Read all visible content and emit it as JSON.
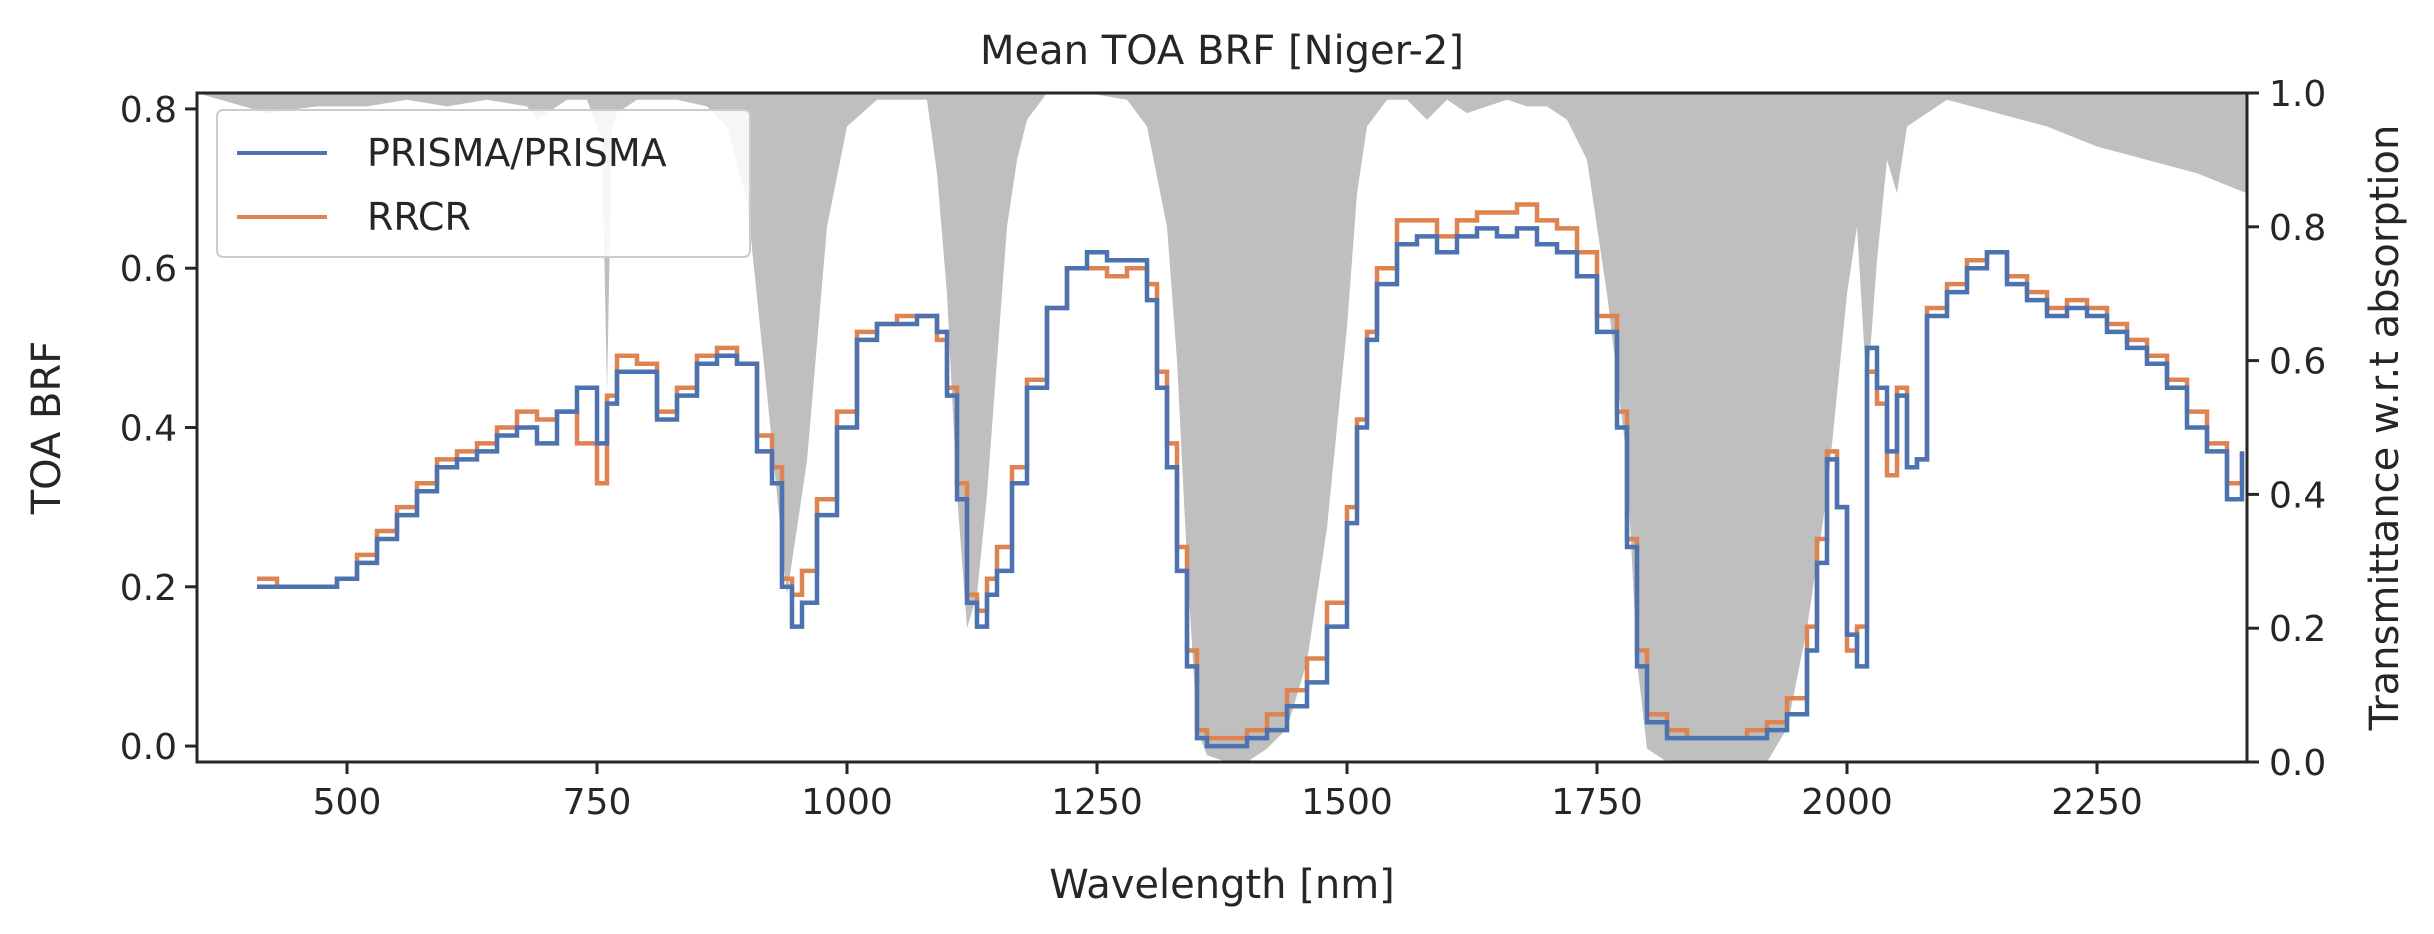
{
  "chart_data": {
    "type": "line",
    "title": "Mean TOA BRF [Niger-2]",
    "xlabel": "Wavelength [nm]",
    "ylabel": "TOA BRF",
    "ylabel_right": "Transmittance w.r.t absorption",
    "xlim": [
      350,
      2400
    ],
    "ylim": [
      -0.02,
      0.82
    ],
    "ylim_right": [
      0.0,
      1.0
    ],
    "xticks": [
      500,
      750,
      1000,
      1250,
      1500,
      1750,
      2000,
      2250
    ],
    "xtick_labels": [
      "500",
      "750",
      "1000",
      "1250",
      "1500",
      "1750",
      "2000",
      "2250"
    ],
    "yticks": [
      0.0,
      0.2,
      0.4,
      0.6,
      0.8
    ],
    "ytick_labels": [
      "0.0",
      "0.2",
      "0.4",
      "0.6",
      "0.8"
    ],
    "yticks_right": [
      0.0,
      0.2,
      0.4,
      0.6,
      0.8,
      1.0
    ],
    "ytick_labels_right": [
      "0.0",
      "0.2",
      "0.4",
      "0.6",
      "0.8",
      "1.0"
    ],
    "legend_position": "top-left",
    "grid": false,
    "series": [
      {
        "name": "PRISMA/PRISMA",
        "color": "#4c72b0",
        "axis": "left",
        "style": "step",
        "x": [
          410,
          430,
          450,
          470,
          490,
          510,
          530,
          550,
          570,
          590,
          610,
          630,
          650,
          670,
          690,
          710,
          730,
          750,
          760,
          770,
          790,
          810,
          830,
          850,
          870,
          890,
          910,
          925,
          935,
          945,
          955,
          970,
          990,
          1010,
          1030,
          1050,
          1070,
          1090,
          1100,
          1110,
          1120,
          1130,
          1140,
          1150,
          1165,
          1180,
          1200,
          1220,
          1240,
          1260,
          1280,
          1300,
          1310,
          1320,
          1330,
          1340,
          1350,
          1360,
          1380,
          1400,
          1420,
          1440,
          1460,
          1480,
          1500,
          1510,
          1520,
          1530,
          1550,
          1570,
          1590,
          1610,
          1630,
          1650,
          1670,
          1690,
          1710,
          1730,
          1750,
          1770,
          1780,
          1790,
          1800,
          1820,
          1840,
          1860,
          1880,
          1900,
          1920,
          1940,
          1960,
          1970,
          1980,
          1990,
          2000,
          2010,
          2020,
          2030,
          2040,
          2050,
          2060,
          2070,
          2080,
          2100,
          2120,
          2140,
          2160,
          2180,
          2200,
          2220,
          2240,
          2260,
          2280,
          2300,
          2320,
          2340,
          2360,
          2380,
          2395
        ],
        "y": [
          0.2,
          0.2,
          0.2,
          0.2,
          0.21,
          0.23,
          0.26,
          0.29,
          0.32,
          0.35,
          0.36,
          0.37,
          0.39,
          0.4,
          0.38,
          0.42,
          0.45,
          0.38,
          0.43,
          0.47,
          0.47,
          0.41,
          0.44,
          0.48,
          0.49,
          0.48,
          0.37,
          0.33,
          0.2,
          0.15,
          0.18,
          0.29,
          0.4,
          0.51,
          0.53,
          0.53,
          0.54,
          0.52,
          0.44,
          0.31,
          0.18,
          0.15,
          0.19,
          0.22,
          0.33,
          0.45,
          0.55,
          0.6,
          0.62,
          0.61,
          0.61,
          0.56,
          0.45,
          0.35,
          0.22,
          0.1,
          0.01,
          0.0,
          0.0,
          0.01,
          0.02,
          0.05,
          0.08,
          0.15,
          0.28,
          0.4,
          0.51,
          0.58,
          0.63,
          0.64,
          0.62,
          0.64,
          0.65,
          0.64,
          0.65,
          0.63,
          0.62,
          0.59,
          0.52,
          0.4,
          0.25,
          0.1,
          0.03,
          0.01,
          0.01,
          0.01,
          0.01,
          0.01,
          0.02,
          0.04,
          0.12,
          0.23,
          0.36,
          0.3,
          0.14,
          0.1,
          0.5,
          0.45,
          0.37,
          0.44,
          0.35,
          0.36,
          0.54,
          0.57,
          0.6,
          0.62,
          0.58,
          0.56,
          0.54,
          0.55,
          0.54,
          0.52,
          0.5,
          0.48,
          0.45,
          0.4,
          0.37,
          0.31,
          0.37
        ]
      },
      {
        "name": "RRCR",
        "color": "#dd8452",
        "axis": "left",
        "style": "step",
        "x": [
          410,
          430,
          450,
          470,
          490,
          510,
          530,
          550,
          570,
          590,
          610,
          630,
          650,
          670,
          690,
          710,
          730,
          750,
          760,
          770,
          790,
          810,
          830,
          850,
          870,
          890,
          910,
          925,
          935,
          945,
          955,
          970,
          990,
          1010,
          1030,
          1050,
          1070,
          1090,
          1100,
          1110,
          1120,
          1130,
          1140,
          1150,
          1165,
          1180,
          1200,
          1220,
          1240,
          1260,
          1280,
          1300,
          1310,
          1320,
          1330,
          1340,
          1350,
          1360,
          1380,
          1400,
          1420,
          1440,
          1460,
          1480,
          1500,
          1510,
          1520,
          1530,
          1550,
          1570,
          1590,
          1610,
          1630,
          1650,
          1670,
          1690,
          1710,
          1730,
          1750,
          1770,
          1780,
          1790,
          1800,
          1820,
          1840,
          1860,
          1880,
          1900,
          1920,
          1940,
          1960,
          1970,
          1980,
          1990,
          2000,
          2010,
          2020,
          2030,
          2040,
          2050,
          2060,
          2070,
          2080,
          2100,
          2120,
          2140,
          2160,
          2180,
          2200,
          2220,
          2240,
          2260,
          2280,
          2300,
          2320,
          2340,
          2360,
          2380,
          2395
        ],
        "y": [
          0.21,
          0.2,
          0.2,
          0.2,
          0.21,
          0.24,
          0.27,
          0.3,
          0.33,
          0.36,
          0.37,
          0.38,
          0.4,
          0.42,
          0.41,
          0.42,
          0.38,
          0.33,
          0.44,
          0.49,
          0.48,
          0.42,
          0.45,
          0.49,
          0.5,
          0.48,
          0.39,
          0.35,
          0.21,
          0.19,
          0.22,
          0.31,
          0.42,
          0.52,
          0.53,
          0.54,
          0.54,
          0.51,
          0.45,
          0.33,
          0.19,
          0.17,
          0.21,
          0.25,
          0.35,
          0.46,
          0.55,
          0.6,
          0.6,
          0.59,
          0.6,
          0.58,
          0.47,
          0.38,
          0.25,
          0.12,
          0.02,
          0.01,
          0.01,
          0.02,
          0.04,
          0.07,
          0.11,
          0.18,
          0.3,
          0.41,
          0.52,
          0.6,
          0.66,
          0.66,
          0.64,
          0.66,
          0.67,
          0.67,
          0.68,
          0.66,
          0.65,
          0.62,
          0.54,
          0.42,
          0.26,
          0.12,
          0.04,
          0.02,
          0.01,
          0.01,
          0.01,
          0.02,
          0.03,
          0.06,
          0.15,
          0.26,
          0.37,
          0.3,
          0.12,
          0.15,
          0.47,
          0.43,
          0.34,
          0.45,
          0.35,
          0.36,
          0.55,
          0.58,
          0.61,
          0.62,
          0.59,
          0.57,
          0.55,
          0.56,
          0.55,
          0.53,
          0.51,
          0.49,
          0.46,
          0.42,
          0.38,
          0.33,
          0.37
        ]
      },
      {
        "name": "",
        "color": "#bfbfbf",
        "axis": "right",
        "style": "filled-from-top",
        "x": [
          350,
          420,
          470,
          520,
          560,
          600,
          640,
          680,
          690,
          700,
          720,
          740,
          755,
          760,
          765,
          770,
          790,
          810,
          830,
          860,
          880,
          900,
          920,
          940,
          960,
          980,
          1000,
          1030,
          1060,
          1080,
          1090,
          1100,
          1110,
          1120,
          1130,
          1140,
          1150,
          1160,
          1170,
          1180,
          1190,
          1200,
          1240,
          1280,
          1300,
          1320,
          1330,
          1340,
          1350,
          1360,
          1380,
          1400,
          1420,
          1440,
          1460,
          1480,
          1500,
          1510,
          1520,
          1540,
          1560,
          1580,
          1600,
          1620,
          1640,
          1660,
          1680,
          1700,
          1720,
          1740,
          1760,
          1780,
          1790,
          1800,
          1820,
          1840,
          1860,
          1880,
          1900,
          1920,
          1940,
          1960,
          1980,
          2000,
          2010,
          2020,
          2030,
          2040,
          2050,
          2060,
          2080,
          2100,
          2150,
          2200,
          2250,
          2300,
          2350,
          2400
        ],
        "y": [
          1.0,
          0.97,
          0.98,
          0.98,
          0.99,
          0.98,
          0.99,
          0.98,
          0.96,
          0.97,
          0.99,
          0.99,
          0.93,
          0.55,
          0.95,
          0.97,
          0.99,
          0.99,
          0.99,
          0.98,
          0.95,
          0.84,
          0.55,
          0.25,
          0.45,
          0.8,
          0.95,
          0.99,
          0.99,
          0.99,
          0.88,
          0.7,
          0.4,
          0.2,
          0.25,
          0.4,
          0.6,
          0.8,
          0.9,
          0.96,
          0.98,
          1.0,
          1.0,
          0.99,
          0.95,
          0.8,
          0.6,
          0.3,
          0.05,
          0.01,
          0.0,
          0.0,
          0.02,
          0.05,
          0.15,
          0.35,
          0.65,
          0.85,
          0.95,
          0.99,
          0.99,
          0.96,
          0.99,
          0.97,
          0.98,
          0.99,
          0.98,
          0.98,
          0.96,
          0.9,
          0.7,
          0.45,
          0.15,
          0.02,
          0.0,
          0.0,
          0.0,
          0.0,
          0.0,
          0.0,
          0.05,
          0.2,
          0.4,
          0.7,
          0.8,
          0.55,
          0.75,
          0.9,
          0.85,
          0.95,
          0.97,
          0.99,
          0.97,
          0.95,
          0.92,
          0.9,
          0.88,
          0.85
        ]
      }
    ]
  }
}
